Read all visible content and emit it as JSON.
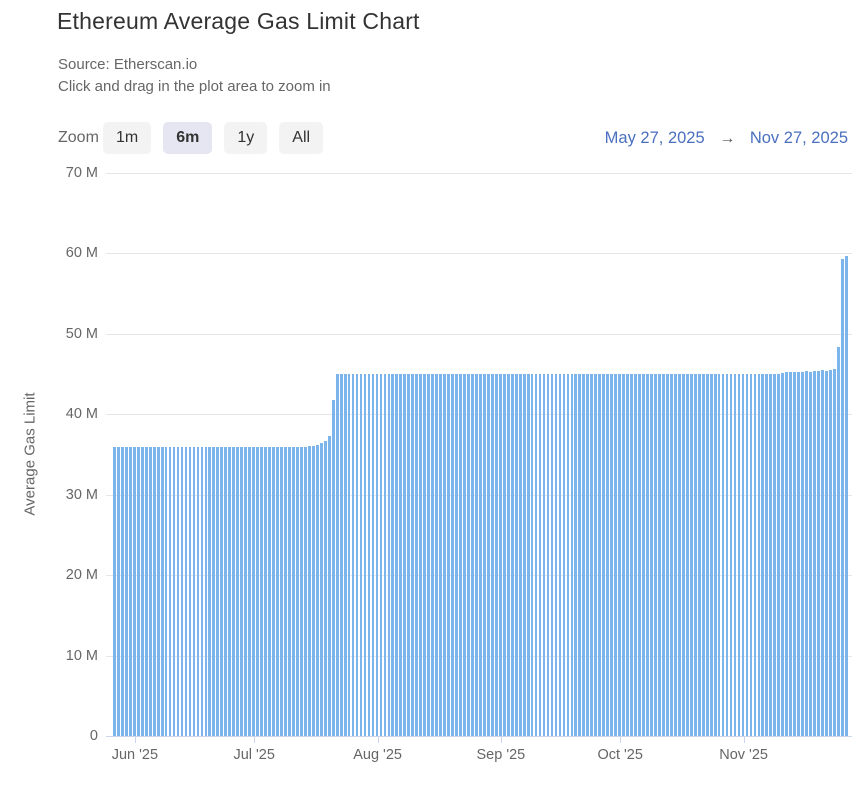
{
  "header": {
    "title": "Ethereum Average Gas Limit Chart",
    "source": "Source: Etherscan.io",
    "hint": "Click and drag in the plot area to zoom in"
  },
  "toolbar": {
    "zoom_label": "Zoom",
    "buttons": [
      {
        "label": "1m",
        "selected": false
      },
      {
        "label": "6m",
        "selected": true
      },
      {
        "label": "1y",
        "selected": false
      },
      {
        "label": "All",
        "selected": false
      }
    ],
    "range_start": "May 27, 2025",
    "arrow": "→",
    "range_end": "Nov 27, 2025"
  },
  "colors": {
    "bar": "#7cb5ec",
    "axis_line": "#ccd6eb",
    "gridline": "#e6e6e6",
    "label": "#666666",
    "title": "#333333",
    "date_link": "#4a6fbe",
    "button_bg": "#f3f3f3",
    "selected_button_bg": "#e6e6f2"
  },
  "chart_data": {
    "type": "bar",
    "title": "Ethereum Average Gas Limit Chart",
    "source": "Etherscan.io",
    "xlabel": "",
    "ylabel": "Average Gas Limit",
    "unit": "M",
    "ylim": [
      0,
      70
    ],
    "yticks": [
      "70 M",
      "60 M",
      "50 M",
      "40 M",
      "30 M",
      "20 M",
      "10 M",
      "0"
    ],
    "grid": "horizontal",
    "legend": "none",
    "start_date": "May 27, 2025",
    "end_date": "Nov 27, 2025",
    "x_ticks": [
      {
        "label": "Jun '25",
        "day": 5
      },
      {
        "label": "Jul '25",
        "day": 35
      },
      {
        "label": "Aug '25",
        "day": 66
      },
      {
        "label": "Sep '25",
        "day": 97
      },
      {
        "label": "Oct '25",
        "day": 127
      },
      {
        "label": "Nov '25",
        "day": 158
      }
    ],
    "values_unit_millions": true,
    "values": [
      35.9,
      35.9,
      35.9,
      35.9,
      35.9,
      35.9,
      35.9,
      35.9,
      35.9,
      35.9,
      35.9,
      35.9,
      35.9,
      35.9,
      35.9,
      35.9,
      35.9,
      35.9,
      35.9,
      35.9,
      35.9,
      35.9,
      35.9,
      35.9,
      35.9,
      35.9,
      35.9,
      35.9,
      35.9,
      35.9,
      35.9,
      35.9,
      35.9,
      35.9,
      35.9,
      35.9,
      35.9,
      35.9,
      35.9,
      35.9,
      35.9,
      35.9,
      35.9,
      35.9,
      35.9,
      35.9,
      35.9,
      35.9,
      35.9,
      36.0,
      36.1,
      36.2,
      36.4,
      36.7,
      37.3,
      41.8,
      45.0,
      45.0,
      45.0,
      45.0,
      45.0,
      45.0,
      45.0,
      45.0,
      45.0,
      45.0,
      45.0,
      45.0,
      45.0,
      45.0,
      45.0,
      45.0,
      45.0,
      45.0,
      45.0,
      45.0,
      45.0,
      45.0,
      45.0,
      45.0,
      45.0,
      45.0,
      45.0,
      45.0,
      45.0,
      45.0,
      45.0,
      45.0,
      45.0,
      45.0,
      45.0,
      45.0,
      45.0,
      45.0,
      45.0,
      45.0,
      45.0,
      45.0,
      45.0,
      45.0,
      45.0,
      45.0,
      45.0,
      45.0,
      45.0,
      45.0,
      45.0,
      45.0,
      45.0,
      45.0,
      45.0,
      45.0,
      45.0,
      45.0,
      45.0,
      45.0,
      45.0,
      45.0,
      45.0,
      45.0,
      45.0,
      45.0,
      45.0,
      45.0,
      45.0,
      45.0,
      45.0,
      45.0,
      45.0,
      45.0,
      45.0,
      45.0,
      45.0,
      45.0,
      45.0,
      45.0,
      45.0,
      45.0,
      45.0,
      45.0,
      45.0,
      45.0,
      45.0,
      45.0,
      45.0,
      45.0,
      45.0,
      45.0,
      45.0,
      45.0,
      45.0,
      45.0,
      45.0,
      45.0,
      45.0,
      45.0,
      45.0,
      45.0,
      45.0,
      45.0,
      45.0,
      45.0,
      45.0,
      45.0,
      45.0,
      45.0,
      45.0,
      45.0,
      45.1,
      45.2,
      45.2,
      45.3,
      45.2,
      45.3,
      45.4,
      45.3,
      45.4,
      45.4,
      45.5,
      45.4,
      45.5,
      45.6,
      48.4,
      59.3,
      59.7
    ]
  }
}
